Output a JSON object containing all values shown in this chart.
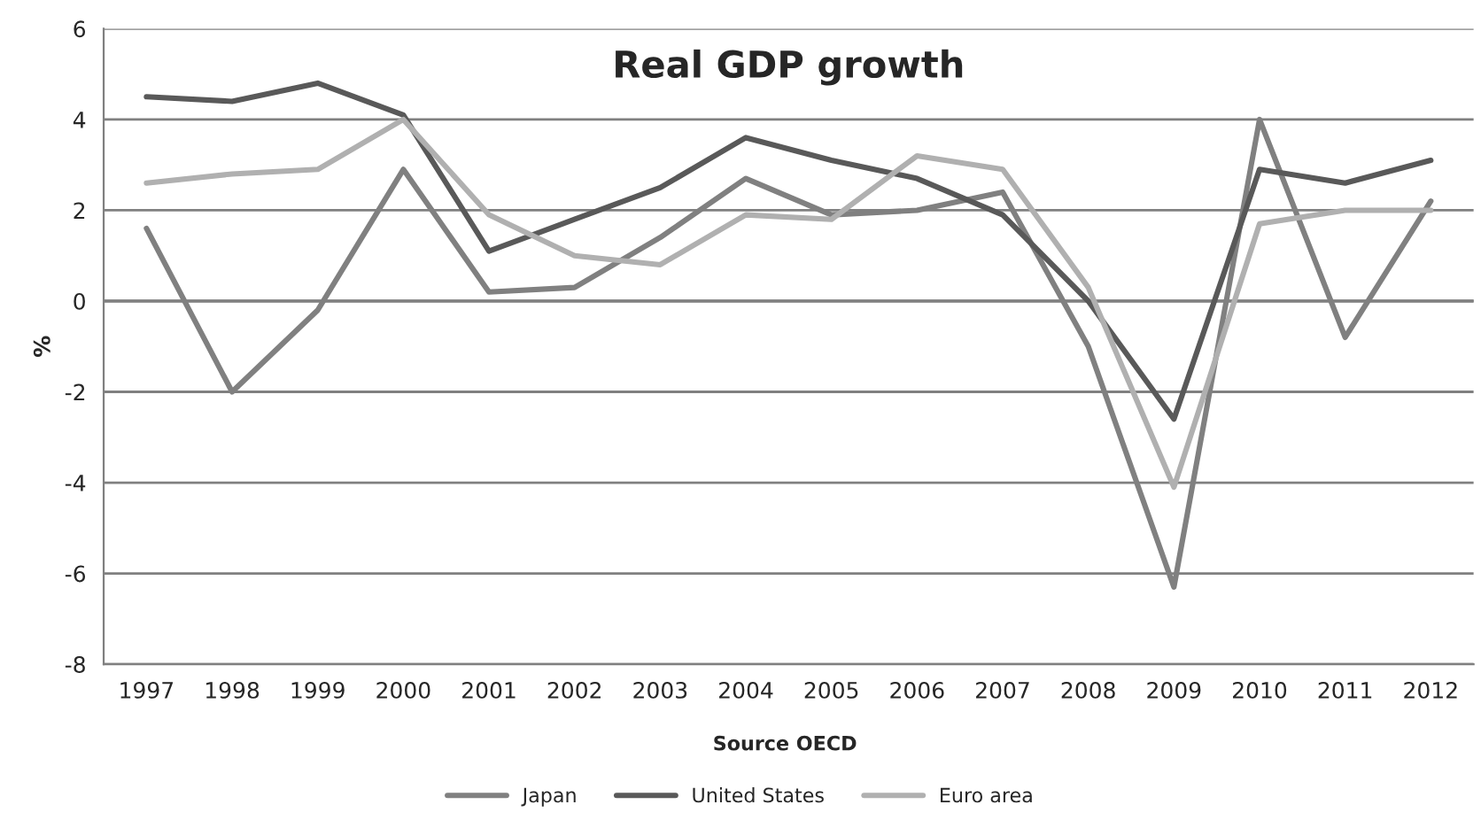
{
  "chart_data": {
    "type": "line",
    "title": "Real GDP growth",
    "ylabel": "%",
    "categories": [
      "1997",
      "1998",
      "1999",
      "2000",
      "2001",
      "2002",
      "2003",
      "2004",
      "2005",
      "2006",
      "2007",
      "2008",
      "2009",
      "2010",
      "2011",
      "2012"
    ],
    "series": [
      {
        "name": "Japan",
        "color": "#808080",
        "values": [
          1.6,
          -2.0,
          -0.2,
          2.9,
          0.2,
          0.3,
          1.4,
          2.7,
          1.9,
          2.0,
          2.4,
          -1.0,
          -6.3,
          4.0,
          -0.8,
          2.2
        ]
      },
      {
        "name": "United States",
        "color": "#595959",
        "values": [
          4.5,
          4.4,
          4.8,
          4.1,
          1.1,
          1.8,
          2.5,
          3.6,
          3.1,
          2.7,
          1.9,
          0.0,
          -2.6,
          2.9,
          2.6,
          3.1
        ]
      },
      {
        "name": "Euro area",
        "color": "#b0b0b0",
        "values": [
          2.6,
          2.8,
          2.9,
          4.0,
          1.9,
          1.0,
          0.8,
          1.9,
          1.8,
          3.2,
          2.9,
          0.3,
          -4.1,
          1.7,
          2.0,
          2.0
        ]
      }
    ],
    "ylim": [
      -8,
      6
    ],
    "yticks": [
      -8,
      -6,
      -4,
      -2,
      0,
      2,
      4,
      6
    ],
    "grid": "y",
    "legend": "bottom",
    "annotations": [
      "Source OECD"
    ]
  }
}
